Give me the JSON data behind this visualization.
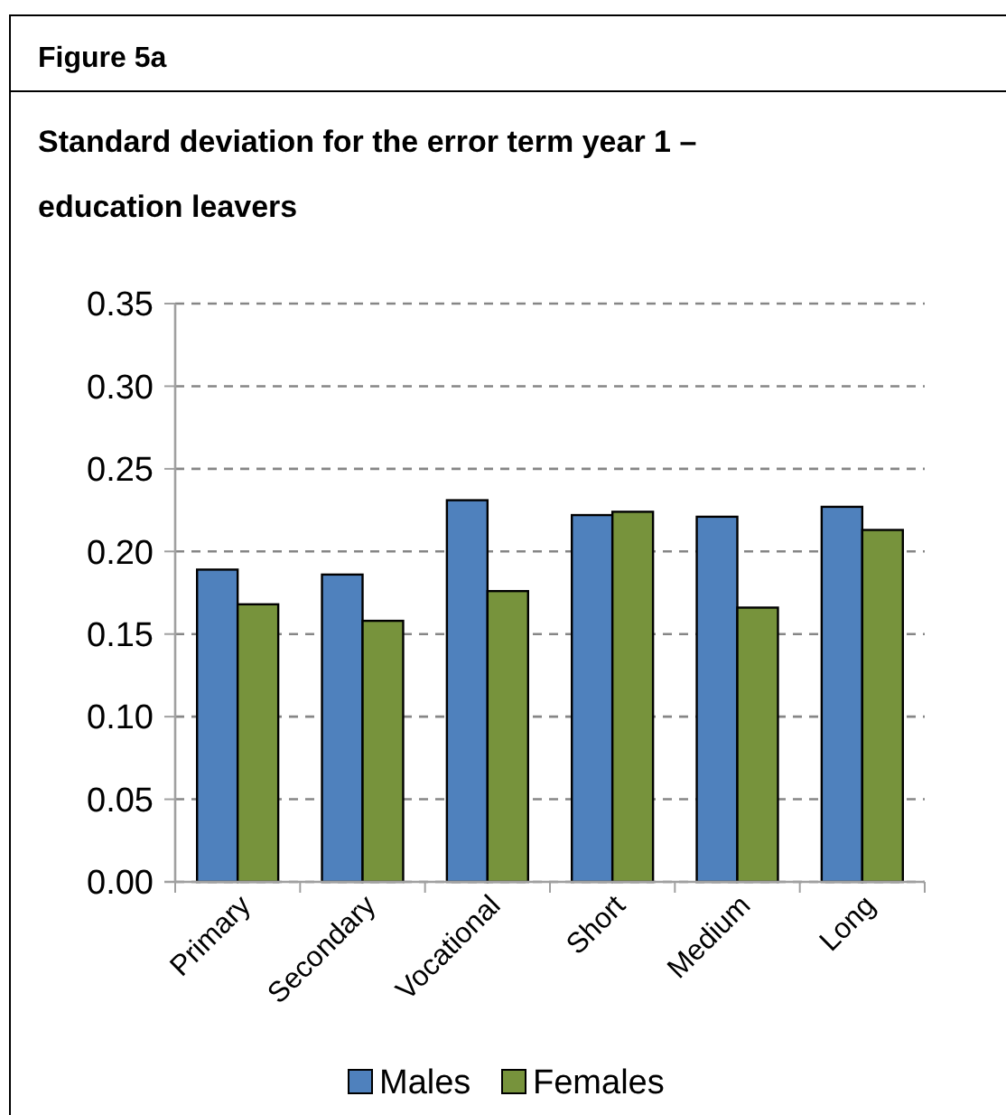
{
  "chart_data": {
    "type": "bar",
    "title": "Standard deviation for the error term year 1 – education leavers",
    "annotations": [
      "Figure 5a"
    ],
    "categories": [
      "Primary",
      "Secondary",
      "Vocational",
      "Short",
      "Medium",
      "Long"
    ],
    "series": [
      {
        "name": "Males",
        "color": "#4f81bd",
        "values": [
          0.189,
          0.186,
          0.231,
          0.222,
          0.221,
          0.227
        ]
      },
      {
        "name": "Females",
        "color": "#77933c",
        "values": [
          0.168,
          0.158,
          0.176,
          0.224,
          0.166,
          0.213
        ]
      }
    ],
    "ylim": [
      0,
      0.35
    ],
    "yticks": [
      {
        "value": 0,
        "label": "0.00"
      },
      {
        "value": 0.05,
        "label": "0.05"
      },
      {
        "value": 0.1,
        "label": "0.10"
      },
      {
        "value": 0.15,
        "label": "0.15"
      },
      {
        "value": 0.2,
        "label": "0.20"
      },
      {
        "value": 0.25,
        "label": "0.25"
      },
      {
        "value": 0.3,
        "label": "0.30"
      },
      {
        "value": 0.35,
        "label": "0.35"
      }
    ],
    "grid": "y",
    "legend": "bottom"
  }
}
